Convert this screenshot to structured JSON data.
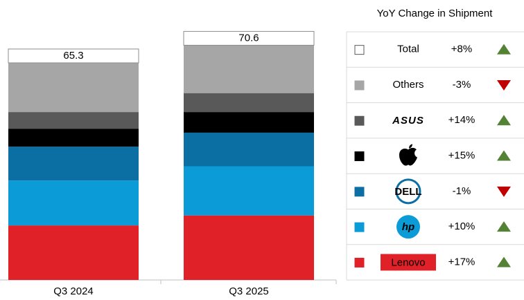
{
  "chart_data": {
    "type": "stacked_bar",
    "categories": [
      "Q3 2024",
      "Q3 2025"
    ],
    "ylim": [
      0,
      75
    ],
    "total": {
      "name": "Total",
      "color": "#ffffff",
      "values": [
        65.3,
        70.6
      ],
      "yoy": 8,
      "yoy_label": "+8%"
    },
    "series": [
      {
        "name": "Lenovo",
        "color": "#e02127",
        "values": [
          16.4,
          19.4
        ],
        "yoy": 17,
        "yoy_label": "+17%"
      },
      {
        "name": "hp",
        "color": "#0b9bd7",
        "values": [
          13.5,
          14.8
        ],
        "yoy": 10,
        "yoy_label": "+10%"
      },
      {
        "name": "DELL",
        "color": "#0b6fa4",
        "values": [
          10.2,
          10.1
        ],
        "yoy": -1,
        "yoy_label": "-1%"
      },
      {
        "name": null,
        "color": "#000000",
        "values": [
          5.4,
          6.2
        ],
        "yoy": 15,
        "yoy_label": "+15%"
      },
      {
        "name": "ASUS",
        "color": "#595959",
        "values": [
          5.0,
          5.7
        ],
        "yoy": 14,
        "yoy_label": "+14%"
      },
      {
        "name": "Others",
        "color": "#a6a6a6",
        "values": [
          14.8,
          14.4
        ],
        "yoy": -3,
        "yoy_label": "-3%"
      }
    ],
    "table_title": "YoY Change in Shipment",
    "up_color": "#548235",
    "down_color": "#c00000"
  }
}
